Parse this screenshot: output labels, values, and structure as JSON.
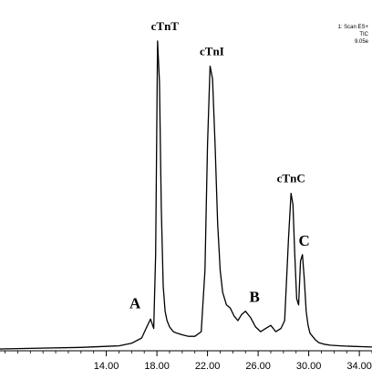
{
  "chart_data": {
    "type": "line",
    "title": "",
    "xlabel": "",
    "ylabel": "",
    "xlim": [
      5.6,
      35.0
    ],
    "ylim": [
      0,
      100
    ],
    "x_ticks": [
      "14.00",
      "18.00",
      "22.00",
      "26.00",
      "30.00",
      "34.00"
    ],
    "x_tick_values": [
      14,
      18,
      22,
      26,
      30,
      34
    ],
    "scan_info": [
      "1: Scan ES+",
      "TIC",
      "9.05e"
    ],
    "line_color": "#000000",
    "series": [
      {
        "x": [
          5.6,
          12.0,
          15.0,
          16.0,
          16.8,
          17.2,
          17.5,
          17.75,
          17.9,
          18.05,
          18.2,
          18.35,
          18.5,
          18.65,
          18.8,
          19.0,
          19.3,
          19.6,
          20.0,
          20.5,
          21.0,
          21.5,
          21.8,
          22.0,
          22.2,
          22.4,
          22.6,
          22.8,
          23.0,
          23.2,
          23.5,
          23.8,
          24.1,
          24.4,
          24.7,
          25.0,
          25.4,
          25.8,
          26.2,
          26.6,
          27.0,
          27.4,
          27.8,
          28.1,
          28.4,
          28.6,
          28.75,
          28.9,
          29.05,
          29.2,
          29.35,
          29.5,
          29.65,
          29.8,
          29.95,
          30.1,
          30.3,
          30.5,
          30.8,
          31.2,
          31.7,
          32.5,
          33.5,
          35.0
        ],
        "y": [
          0,
          0.5,
          1.0,
          1.8,
          3.5,
          7.0,
          9.5,
          6.5,
          30.0,
          98.0,
          85.0,
          45.0,
          20.0,
          12.0,
          9.0,
          7.0,
          5.5,
          5.0,
          4.5,
          4.0,
          4.0,
          5.5,
          25.0,
          65.0,
          90.0,
          86.0,
          65.0,
          40.0,
          25.0,
          18.0,
          14.0,
          13.0,
          10.5,
          9.0,
          11.0,
          12.0,
          10.0,
          7.0,
          5.5,
          6.5,
          7.5,
          5.5,
          6.5,
          9.0,
          35.0,
          49.5,
          46.0,
          30.0,
          16.0,
          14.0,
          28.0,
          30.0,
          22.0,
          12.0,
          7.5,
          5.0,
          4.0,
          3.0,
          2.0,
          1.5,
          1.2,
          1.0,
          0.8,
          0.6
        ]
      }
    ],
    "annotations": [
      {
        "text": "cTnT",
        "x": 18.05
      },
      {
        "text": "cTnI",
        "x": 22.2
      },
      {
        "text": "cTnC",
        "x": 28.6
      },
      {
        "text": "A",
        "x": 17.5
      },
      {
        "text": "B",
        "x": 25.0
      },
      {
        "text": "C",
        "x": 29.5
      }
    ]
  }
}
